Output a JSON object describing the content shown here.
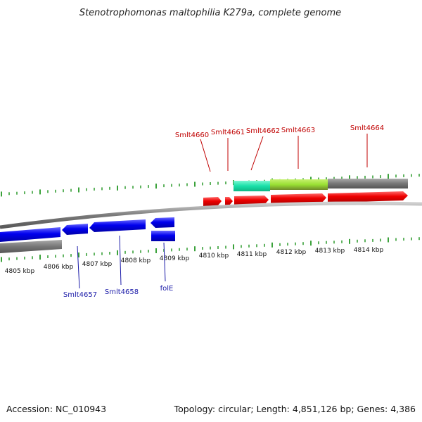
{
  "title": "Stenotrophomonas maltophilia K279a, complete genome",
  "footer": {
    "accession": "Accession: NC_010943",
    "stats": "Topology: circular; Length: 4,851,126 bp; Genes: 4,386"
  },
  "kbp_labels": [
    "4805 kbp",
    "4806 kbp",
    "4807 kbp",
    "4808 kbp",
    "4809 kbp",
    "4810 kbp",
    "4811 kbp",
    "4812 kbp",
    "4813 kbp",
    "4814 kbp"
  ],
  "forward_genes": [
    "Smlt4660",
    "Smlt4661",
    "Smlt4662",
    "Smlt4663",
    "Smlt4664"
  ],
  "reverse_genes": [
    "Smlt4657",
    "Smlt4658",
    "folE"
  ],
  "colors": {
    "forward": "#ee0000",
    "reverse": "#0000ee",
    "backbone": "#888888",
    "tick": "#0a8a0a",
    "feature_cyan": "#19e0a8",
    "feature_lime": "#99e033",
    "feature_gray": "#777777"
  }
}
